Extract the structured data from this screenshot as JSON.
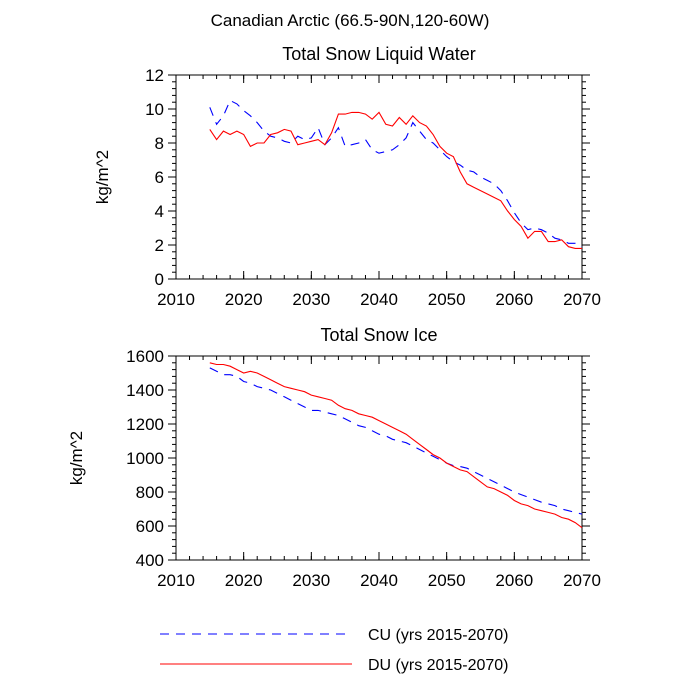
{
  "title": "Canadian Arctic (66.5-90N,120-60W)",
  "colors": {
    "cu": "#0000ff",
    "du": "#ff0000",
    "axis": "#000000"
  },
  "legend": [
    {
      "label": "CU (yrs 2015-2070)",
      "style": "dashed",
      "color": "#0000ff"
    },
    {
      "label": "DU (yrs 2015-2070)",
      "style": "solid",
      "color": "#ff0000"
    }
  ],
  "chart_data": [
    {
      "type": "line",
      "title": "Total Snow Liquid Water",
      "xlabel": "",
      "ylabel": "kg/m^2",
      "xlim": [
        2010,
        2070
      ],
      "ylim": [
        0,
        12
      ],
      "xticks": [
        2010,
        2020,
        2030,
        2040,
        2050,
        2060,
        2070
      ],
      "yticks": [
        0,
        2,
        4,
        6,
        8,
        10,
        12
      ],
      "x": [
        2015,
        2016,
        2017,
        2018,
        2019,
        2020,
        2021,
        2022,
        2023,
        2024,
        2025,
        2026,
        2027,
        2028,
        2029,
        2030,
        2031,
        2032,
        2033,
        2034,
        2035,
        2036,
        2037,
        2038,
        2039,
        2040,
        2041,
        2042,
        2043,
        2044,
        2045,
        2046,
        2047,
        2048,
        2049,
        2050,
        2051,
        2052,
        2053,
        2054,
        2055,
        2056,
        2057,
        2058,
        2059,
        2060,
        2061,
        2062,
        2063,
        2064,
        2065,
        2066,
        2067,
        2068,
        2069,
        2070
      ],
      "series": [
        {
          "name": "CU (yrs 2015-2070)",
          "values": [
            10.1,
            9.1,
            9.6,
            10.5,
            10.3,
            9.9,
            9.6,
            9.2,
            8.7,
            8.4,
            8.3,
            8.1,
            8.0,
            8.4,
            8.2,
            8.3,
            8.9,
            7.9,
            8.3,
            8.9,
            7.8,
            7.9,
            8.0,
            8.2,
            7.6,
            7.4,
            7.5,
            7.6,
            7.9,
            8.3,
            9.2,
            8.7,
            8.2,
            8.0,
            7.6,
            7.2,
            6.9,
            6.7,
            6.4,
            6.3,
            6.0,
            5.8,
            5.6,
            5.2,
            4.6,
            3.9,
            3.3,
            2.9,
            3.0,
            2.9,
            2.7,
            2.4,
            2.3,
            2.1,
            2.1,
            1.9
          ]
        },
        {
          "name": "DU (yrs 2015-2070)",
          "values": [
            8.8,
            8.2,
            8.7,
            8.5,
            8.7,
            8.5,
            7.8,
            8.0,
            8.0,
            8.5,
            8.6,
            8.8,
            8.7,
            7.9,
            8.0,
            8.1,
            8.2,
            7.9,
            8.6,
            9.7,
            9.7,
            9.8,
            9.8,
            9.7,
            9.4,
            9.8,
            9.1,
            9.0,
            9.5,
            9.1,
            9.6,
            9.2,
            9.0,
            8.5,
            7.8,
            7.4,
            7.2,
            6.3,
            5.6,
            5.4,
            5.2,
            5.0,
            4.8,
            4.6,
            4.0,
            3.5,
            3.1,
            2.4,
            2.8,
            2.8,
            2.2,
            2.2,
            2.3,
            1.9,
            1.8,
            1.8
          ]
        }
      ]
    },
    {
      "type": "line",
      "title": "Total Snow Ice",
      "xlabel": "",
      "ylabel": "kg/m^2",
      "xlim": [
        2010,
        2070
      ],
      "ylim": [
        400,
        1600
      ],
      "xticks": [
        2010,
        2020,
        2030,
        2040,
        2050,
        2060,
        2070
      ],
      "yticks": [
        400,
        600,
        800,
        1000,
        1200,
        1400,
        1600
      ],
      "x": [
        2015,
        2016,
        2017,
        2018,
        2019,
        2020,
        2021,
        2022,
        2023,
        2024,
        2025,
        2026,
        2027,
        2028,
        2029,
        2030,
        2031,
        2032,
        2033,
        2034,
        2035,
        2036,
        2037,
        2038,
        2039,
        2040,
        2041,
        2042,
        2043,
        2044,
        2045,
        2046,
        2047,
        2048,
        2049,
        2050,
        2051,
        2052,
        2053,
        2054,
        2055,
        2056,
        2057,
        2058,
        2059,
        2060,
        2061,
        2062,
        2063,
        2064,
        2065,
        2066,
        2067,
        2068,
        2069,
        2070
      ],
      "series": [
        {
          "name": "CU (yrs 2015-2070)",
          "values": [
            1530,
            1510,
            1490,
            1490,
            1480,
            1450,
            1440,
            1420,
            1410,
            1400,
            1380,
            1360,
            1340,
            1320,
            1300,
            1280,
            1280,
            1270,
            1260,
            1250,
            1230,
            1210,
            1190,
            1180,
            1160,
            1140,
            1130,
            1110,
            1100,
            1090,
            1070,
            1050,
            1030,
            1010,
            990,
            970,
            955,
            950,
            940,
            920,
            900,
            880,
            860,
            840,
            820,
            800,
            785,
            770,
            755,
            740,
            730,
            720,
            700,
            690,
            680,
            670
          ]
        },
        {
          "name": "DU (yrs 2015-2070)",
          "values": [
            1560,
            1550,
            1550,
            1540,
            1520,
            1500,
            1510,
            1500,
            1480,
            1460,
            1440,
            1420,
            1410,
            1400,
            1390,
            1370,
            1360,
            1350,
            1340,
            1310,
            1290,
            1280,
            1260,
            1250,
            1240,
            1220,
            1200,
            1180,
            1160,
            1140,
            1110,
            1080,
            1050,
            1020,
            1000,
            970,
            950,
            930,
            920,
            890,
            860,
            830,
            820,
            800,
            780,
            750,
            730,
            720,
            700,
            690,
            680,
            670,
            650,
            640,
            620,
            590
          ]
        }
      ]
    }
  ]
}
